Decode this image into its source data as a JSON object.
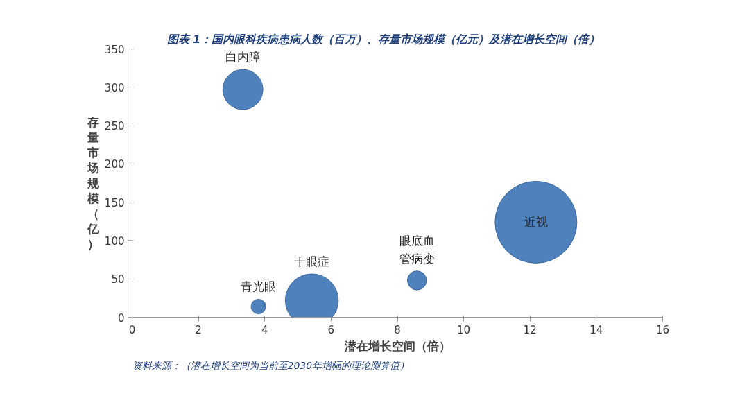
{
  "chart_data": {
    "type": "bubble",
    "title": "图表 1：国内眼科疾病患病人数（百万）、存量市场规模（亿元）及潜在增长空间（倍）",
    "xlabel": "潜在增长空间（倍）",
    "ylabel": "存量市场规模（亿）",
    "xlim": [
      0,
      16
    ],
    "xticks": [
      0,
      2,
      4,
      6,
      8,
      10,
      12,
      14,
      16
    ],
    "ylim": [
      0,
      350
    ],
    "yticks": [
      0,
      50,
      100,
      150,
      200,
      250,
      300,
      350
    ],
    "grid": false,
    "legend": false,
    "series": [
      {
        "name": "白内障",
        "color": "#4f81bd",
        "x": [
          3.34
        ],
        "values": [
          297
        ],
        "sizes": [
          0.24
        ]
      },
      {
        "name": "青光眼",
        "color": "#4f81bd",
        "x": [
          3.81
        ],
        "values": [
          14
        ],
        "sizes": [
          0.032
        ]
      },
      {
        "name": "干眼症",
        "color": "#4f81bd",
        "x": [
          5.42
        ],
        "values": [
          22
        ],
        "sizes": [
          0.42
        ]
      },
      {
        "name": "眼底血管病变",
        "color": "#4f81bd",
        "x": [
          8.59
        ],
        "values": [
          48
        ],
        "sizes": [
          0.054
        ]
      },
      {
        "name": "近视",
        "color": "#4f81bd",
        "x": [
          12.18
        ],
        "values": [
          124
        ],
        "sizes": [
          1
        ]
      }
    ],
    "annotations": [
      "资料来源：（潜在增长空间为当前至2030年增幅的理论测算值）"
    ]
  }
}
